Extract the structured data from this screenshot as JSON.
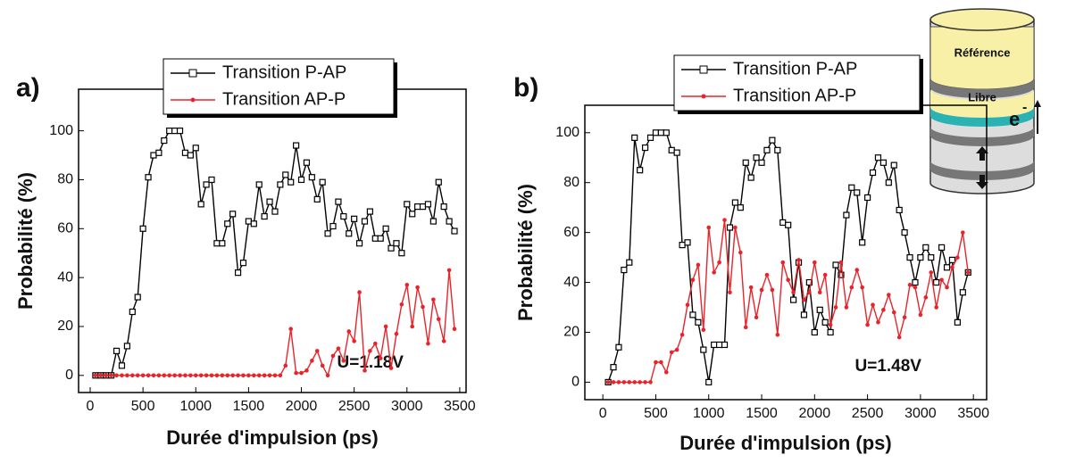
{
  "chart_data": [
    {
      "type": "line",
      "panel_label": "a)",
      "annotation": "U=1.18V",
      "x_label": "Durée d'impulsion (ps)",
      "y_label": "Probabilité (%)",
      "xlim": [
        -110,
        3560
      ],
      "ylim": [
        -7,
        117
      ],
      "xticks": [
        0,
        500,
        1000,
        1500,
        2000,
        2500,
        3000,
        3500
      ],
      "yticks": [
        0,
        20,
        40,
        60,
        80,
        100
      ],
      "legend": "top-left",
      "x": [
        50,
        100,
        150,
        200,
        250,
        300,
        350,
        400,
        450,
        500,
        550,
        600,
        650,
        700,
        750,
        800,
        850,
        900,
        950,
        1000,
        1050,
        1100,
        1150,
        1200,
        1250,
        1300,
        1350,
        1400,
        1450,
        1500,
        1550,
        1600,
        1650,
        1700,
        1750,
        1800,
        1850,
        1900,
        1950,
        2000,
        2050,
        2100,
        2150,
        2200,
        2250,
        2300,
        2350,
        2400,
        2450,
        2500,
        2550,
        2600,
        2650,
        2700,
        2750,
        2800,
        2850,
        2900,
        2950,
        3000,
        3050,
        3100,
        3150,
        3200,
        3250,
        3300,
        3350,
        3400,
        3450
      ],
      "series": [
        {
          "name": "Transition P-AP",
          "color": "#000000",
          "marker": "square",
          "values": [
            0,
            0,
            0,
            0,
            10,
            4,
            12,
            26,
            32,
            60,
            81,
            90,
            91,
            96,
            100,
            100,
            100,
            91,
            90,
            93,
            70,
            78,
            80,
            54,
            54,
            62,
            66,
            42,
            46,
            63,
            62,
            78,
            65,
            71,
            67,
            78,
            82,
            79,
            94,
            80,
            87,
            81,
            72,
            79,
            58,
            61,
            71,
            65,
            58,
            64,
            54,
            63,
            67,
            56,
            56,
            60,
            52,
            54,
            50,
            70,
            66,
            69,
            69,
            70,
            63,
            79,
            69,
            63,
            59
          ]
        },
        {
          "name": "Transition AP-P",
          "color": "#e8242a",
          "marker": "circle",
          "values": [
            0,
            0,
            0,
            0,
            0,
            0,
            0,
            0,
            0,
            0,
            0,
            0,
            0,
            0,
            0,
            0,
            0,
            0,
            0,
            0,
            0,
            0,
            0,
            0,
            0,
            0,
            0,
            0,
            0,
            0,
            0,
            0,
            0,
            0,
            0,
            0,
            4,
            19,
            1,
            1,
            2,
            6,
            10,
            4,
            0,
            8,
            11,
            6,
            18,
            14,
            34,
            2,
            10,
            13,
            7,
            20,
            3,
            17,
            29,
            37,
            20,
            36,
            28,
            13,
            31,
            23,
            14,
            43,
            19
          ]
        }
      ]
    },
    {
      "type": "line",
      "panel_label": "b)",
      "annotation": "U=1.48V",
      "x_label": "Durée d'impulsion (ps)",
      "y_label": "Probabilité (%)",
      "xlim": [
        -170,
        3625
      ],
      "ylim": [
        -7,
        111
      ],
      "xticks": [
        0,
        500,
        1000,
        1500,
        2000,
        2500,
        3000,
        3500
      ],
      "yticks": [
        0,
        20,
        40,
        60,
        80,
        100
      ],
      "legend": "top",
      "x": [
        50,
        100,
        150,
        200,
        250,
        300,
        350,
        400,
        450,
        500,
        550,
        600,
        650,
        700,
        750,
        800,
        850,
        900,
        950,
        1000,
        1050,
        1100,
        1150,
        1200,
        1250,
        1300,
        1350,
        1400,
        1450,
        1500,
        1550,
        1600,
        1650,
        1700,
        1750,
        1800,
        1850,
        1900,
        1950,
        2000,
        2050,
        2100,
        2150,
        2200,
        2250,
        2300,
        2350,
        2400,
        2450,
        2500,
        2550,
        2600,
        2650,
        2700,
        2750,
        2800,
        2850,
        2900,
        2950,
        3000,
        3050,
        3100,
        3150,
        3200,
        3250,
        3300,
        3350,
        3400,
        3450
      ],
      "series": [
        {
          "name": "Transition P-AP",
          "color": "#000000",
          "marker": "square",
          "values": [
            0,
            6,
            14,
            45,
            48,
            98,
            85,
            94,
            98,
            100,
            100,
            100,
            93,
            92,
            55,
            56,
            27,
            24,
            13,
            0,
            15,
            15,
            15,
            62,
            72,
            70,
            88,
            82,
            90,
            88,
            93,
            97,
            93,
            64,
            63,
            33,
            48,
            27,
            40,
            20,
            29,
            24,
            20,
            47,
            43,
            67,
            78,
            76,
            56,
            74,
            84,
            90,
            88,
            80,
            87,
            69,
            60,
            50,
            40,
            50,
            54,
            50,
            40,
            54,
            46,
            49,
            24,
            36,
            44
          ]
        },
        {
          "name": "Transition AP-P",
          "color": "#e8242a",
          "marker": "circle",
          "values": [
            0,
            0,
            0,
            0,
            0,
            0,
            0,
            0,
            0,
            8,
            8,
            4,
            12,
            13,
            19,
            31,
            41,
            47,
            21,
            62,
            44,
            48,
            65,
            36,
            62,
            52,
            22,
            38,
            26,
            37,
            43,
            37,
            19,
            48,
            41,
            36,
            49,
            33,
            36,
            48,
            36,
            43,
            23,
            30,
            48,
            30,
            38,
            45,
            38,
            23,
            31,
            24,
            29,
            35,
            28,
            18,
            26,
            39,
            38,
            27,
            34,
            44,
            30,
            41,
            38,
            46,
            50,
            60,
            44
          ]
        }
      ]
    }
  ],
  "inset": {
    "layers": [
      "Référence",
      "Libre"
    ],
    "electron": "e",
    "electron_charge": "-"
  }
}
